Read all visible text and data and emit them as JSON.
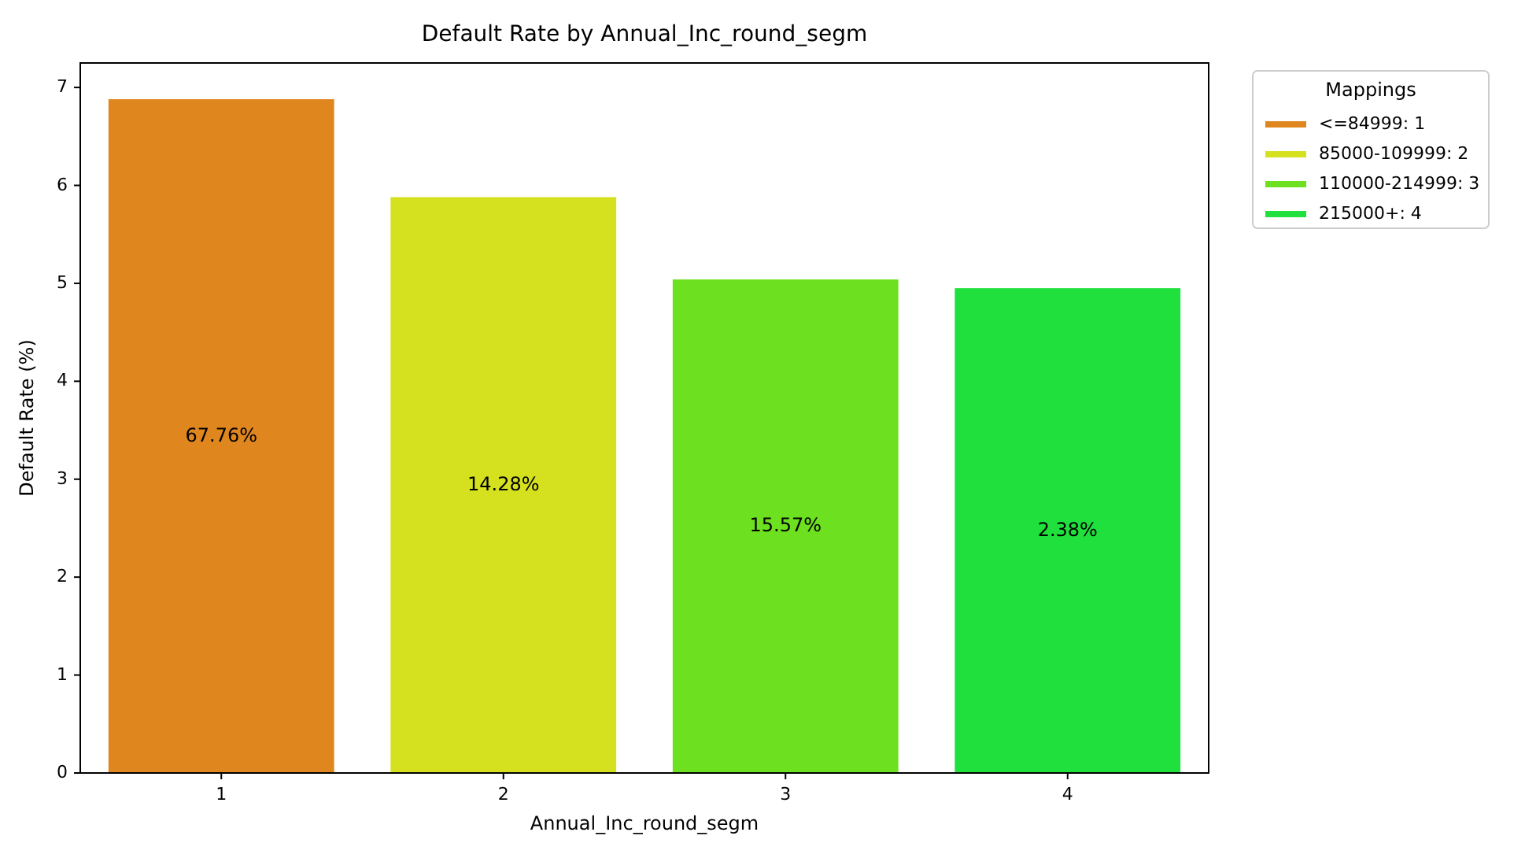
{
  "chart_data": {
    "type": "bar",
    "title": "Default Rate by Annual_Inc_round_segm",
    "xlabel": "Annual_Inc_round_segm",
    "ylabel": "Default Rate (%)",
    "legend_title": "Mappings",
    "legend": "top right",
    "categories": [
      "1",
      "2",
      "3",
      "4"
    ],
    "series": [
      {
        "name": "<=84999: 1",
        "color": "#e0861f",
        "values": [
          6.88,
          null,
          null,
          null
        ]
      },
      {
        "name": "85000-109999: 2",
        "color": "#d5e01f",
        "values": [
          null,
          5.88,
          null,
          null
        ]
      },
      {
        "name": "110000-214999: 3",
        "color": "#6de01f",
        "values": [
          null,
          null,
          5.04,
          null
        ]
      },
      {
        "name": "215000+: 4",
        "color": "#1fe03c",
        "values": [
          null,
          null,
          null,
          4.95
        ]
      }
    ],
    "ylim": [
      0,
      7.25
    ],
    "yticks": [
      0,
      1,
      2,
      3,
      4,
      5,
      6,
      7
    ],
    "annotations": [
      "67.76%",
      "14.28%",
      "15.57%",
      "2.38%"
    ]
  }
}
